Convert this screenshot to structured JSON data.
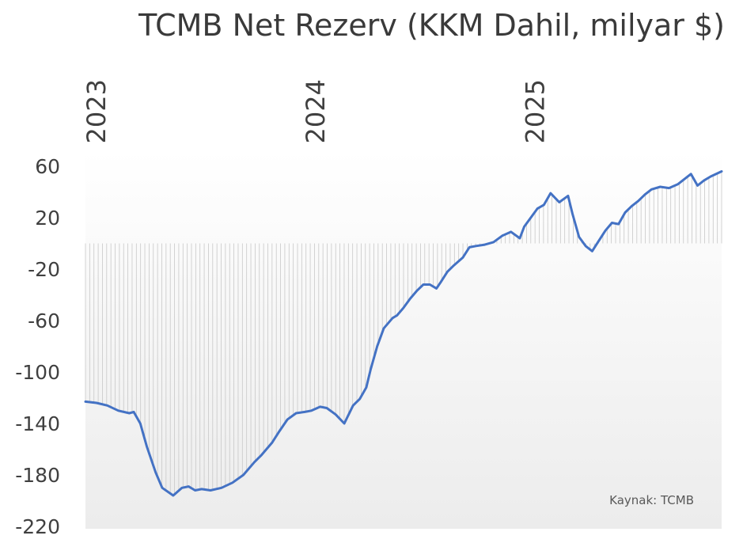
{
  "chart_data": {
    "type": "line",
    "title": "TCMB Net Rezerv (KKM Dahil, milyar $)",
    "source": "Kaynak: TCMB",
    "ylim": [
      -220,
      60
    ],
    "yticks": [
      60,
      20,
      -20,
      -60,
      -100,
      -140,
      -180,
      -220
    ],
    "x_year_labels": [
      {
        "label": "2023",
        "x": 2023.0
      },
      {
        "label": "2024",
        "x": 2024.0
      },
      {
        "label": "2025",
        "x": 2025.0
      }
    ],
    "xlim": [
      2023.0,
      2025.9
    ],
    "line_color": "#4472C4",
    "fill_to_zero": true,
    "grid": false,
    "series": [
      {
        "x": [
          2023.0,
          2023.05,
          2023.1,
          2023.15,
          2023.2,
          2023.22,
          2023.25,
          2023.28,
          2023.32,
          2023.35,
          2023.4,
          2023.44,
          2023.47,
          2023.5,
          2023.53,
          2023.57,
          2023.62,
          2023.67,
          2023.72,
          2023.77,
          2023.8,
          2023.85,
          2023.88,
          2023.92,
          2023.96,
          2024.0,
          2024.03,
          2024.07,
          2024.1,
          2024.14,
          2024.18,
          2024.22,
          2024.25,
          2024.28,
          2024.3,
          2024.33,
          2024.36,
          2024.4,
          2024.42,
          2024.45,
          2024.48,
          2024.51,
          2024.54,
          2024.57,
          2024.6,
          2024.62,
          2024.65,
          2024.68,
          2024.72,
          2024.75,
          2024.78,
          2024.82,
          2024.86,
          2024.9,
          2024.94,
          2024.98,
          2025.0,
          2025.03,
          2025.06,
          2025.09,
          2025.12,
          2025.16,
          2025.2,
          2025.22,
          2025.25,
          2025.28,
          2025.31,
          2025.34,
          2025.37,
          2025.4,
          2025.43,
          2025.46,
          2025.49,
          2025.52,
          2025.55,
          2025.58,
          2025.62,
          2025.66,
          2025.7,
          2025.73,
          2025.76,
          2025.79,
          2025.82,
          2025.85,
          2025.9
        ],
        "y": [
          -123,
          -124,
          -126,
          -130,
          -132,
          -131,
          -140,
          -158,
          -178,
          -190,
          -196,
          -190,
          -189,
          -192,
          -191,
          -192,
          -190,
          -186,
          -180,
          -170,
          -165,
          -155,
          -147,
          -137,
          -132,
          -131,
          -130,
          -127,
          -128,
          -133,
          -140,
          -126,
          -121,
          -112,
          -98,
          -80,
          -66,
          -58,
          -56,
          -50,
          -43,
          -37,
          -32,
          -32,
          -35,
          -30,
          -22,
          -17,
          -11,
          -3,
          -2,
          -1,
          1,
          6,
          9,
          4,
          13,
          20,
          27,
          30,
          39,
          32,
          37,
          23,
          5,
          -2,
          -6,
          2,
          10,
          16,
          15,
          24,
          29,
          33,
          38,
          42,
          44,
          43,
          46,
          50,
          54,
          45,
          49,
          52,
          56
        ]
      }
    ]
  }
}
